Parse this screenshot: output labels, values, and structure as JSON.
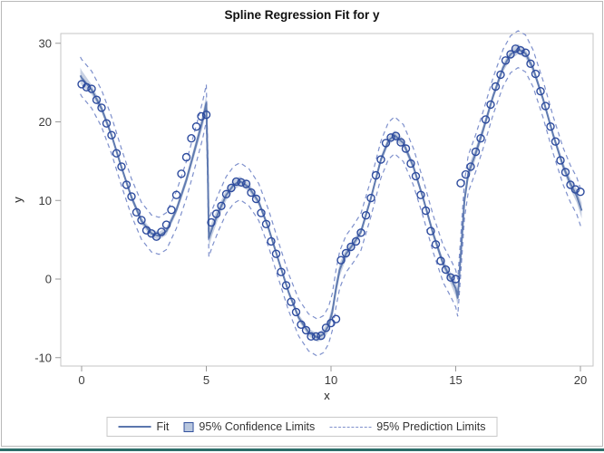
{
  "title": "Spline Regression Fit for y",
  "axes": {
    "x": {
      "label": "x",
      "ticks": [
        0,
        5,
        10,
        15,
        20
      ]
    },
    "y": {
      "label": "y",
      "ticks": [
        -10,
        0,
        10,
        20,
        30
      ]
    }
  },
  "legend": {
    "fit_label": "Fit",
    "ci_label": "95% Confidence Limits",
    "pi_label": "95% Prediction Limits"
  },
  "colors": {
    "marker": "#2d4b9e",
    "fit": "#5b76ad",
    "band": "#c2cce0",
    "prediction": "#7e90cc",
    "wall": "#c6c6c6",
    "tick": "#9a9a9a",
    "text": "#3c3c3c",
    "teal_rule": "#2d6e6a"
  },
  "chart_data": {
    "type": "scatter",
    "title": "Spline Regression Fit for y",
    "xlabel": "x",
    "ylabel": "y",
    "xlim": [
      -0.85,
      20.5
    ],
    "ylim": [
      -11.1,
      31.2
    ],
    "grid": false,
    "legend_position": "bottom",
    "jumps_at_x": [
      5,
      10.3,
      15
    ],
    "scatter_points": [
      [
        0,
        24.8
      ],
      [
        0.2,
        24.4
      ],
      [
        0.4,
        24.2
      ],
      [
        0.6,
        22.8
      ],
      [
        0.8,
        21.8
      ],
      [
        1,
        19.8
      ],
      [
        1.2,
        18.3
      ],
      [
        1.4,
        16.0
      ],
      [
        1.6,
        14.3
      ],
      [
        1.8,
        12.0
      ],
      [
        2,
        10.5
      ],
      [
        2.2,
        8.5
      ],
      [
        2.4,
        7.5
      ],
      [
        2.6,
        6.2
      ],
      [
        2.8,
        5.8
      ],
      [
        3,
        5.4
      ],
      [
        3.2,
        6.0
      ],
      [
        3.4,
        6.9
      ],
      [
        3.6,
        8.8
      ],
      [
        3.8,
        10.7
      ],
      [
        4,
        13.4
      ],
      [
        4.2,
        15.5
      ],
      [
        4.4,
        17.9
      ],
      [
        4.6,
        19.4
      ],
      [
        4.8,
        20.7
      ],
      [
        5,
        20.9
      ],
      [
        5.2,
        7.2
      ],
      [
        5.4,
        8.3
      ],
      [
        5.6,
        9.3
      ],
      [
        5.8,
        10.8
      ],
      [
        6,
        11.6
      ],
      [
        6.2,
        12.4
      ],
      [
        6.4,
        12.3
      ],
      [
        6.6,
        12.1
      ],
      [
        6.8,
        11.0
      ],
      [
        7,
        10.2
      ],
      [
        7.2,
        8.4
      ],
      [
        7.4,
        7.0
      ],
      [
        7.6,
        4.8
      ],
      [
        7.8,
        3.2
      ],
      [
        8,
        0.9
      ],
      [
        8.2,
        -0.8
      ],
      [
        8.4,
        -2.9
      ],
      [
        8.6,
        -4.2
      ],
      [
        8.8,
        -5.8
      ],
      [
        9,
        -6.5
      ],
      [
        9.2,
        -7.3
      ],
      [
        9.4,
        -7.3
      ],
      [
        9.6,
        -7.2
      ],
      [
        9.8,
        -6.2
      ],
      [
        10,
        -5.6
      ],
      [
        10.2,
        -5.1
      ],
      [
        10.4,
        2.4
      ],
      [
        10.6,
        3.3
      ],
      [
        10.8,
        4.1
      ],
      [
        11,
        4.8
      ],
      [
        11.2,
        5.9
      ],
      [
        11.4,
        8.1
      ],
      [
        11.6,
        10.3
      ],
      [
        11.8,
        13.2
      ],
      [
        12,
        15.2
      ],
      [
        12.2,
        17.3
      ],
      [
        12.4,
        18.0
      ],
      [
        12.6,
        18.2
      ],
      [
        12.8,
        17.4
      ],
      [
        13,
        16.6
      ],
      [
        13.2,
        14.7
      ],
      [
        13.4,
        13.1
      ],
      [
        13.6,
        10.7
      ],
      [
        13.8,
        8.7
      ],
      [
        14,
        6.1
      ],
      [
        14.2,
        4.4
      ],
      [
        14.4,
        2.3
      ],
      [
        14.6,
        1.2
      ],
      [
        14.8,
        0.2
      ],
      [
        15,
        0.0
      ],
      [
        15.2,
        12.2
      ],
      [
        15.4,
        13.3
      ],
      [
        15.6,
        14.3
      ],
      [
        15.8,
        16.2
      ],
      [
        16,
        17.9
      ],
      [
        16.2,
        20.3
      ],
      [
        16.4,
        22.2
      ],
      [
        16.6,
        24.5
      ],
      [
        16.8,
        26.0
      ],
      [
        17,
        27.8
      ],
      [
        17.2,
        28.6
      ],
      [
        17.4,
        29.3
      ],
      [
        17.6,
        29.1
      ],
      [
        17.8,
        28.8
      ],
      [
        18,
        27.4
      ],
      [
        18.2,
        26.1
      ],
      [
        18.4,
        23.9
      ],
      [
        18.6,
        22.0
      ],
      [
        18.8,
        19.4
      ],
      [
        19,
        17.5
      ],
      [
        19.2,
        15.1
      ],
      [
        19.4,
        13.6
      ],
      [
        19.6,
        12.0
      ],
      [
        19.8,
        11.4
      ],
      [
        20,
        11.1
      ]
    ],
    "fit_line": [
      [
        -0.05,
        25.9
      ],
      [
        0,
        25.6
      ],
      [
        0.4,
        24.1
      ],
      [
        0.8,
        21.7
      ],
      [
        1.2,
        18.3
      ],
      [
        1.6,
        14.2
      ],
      [
        2,
        10.4
      ],
      [
        2.4,
        7.4
      ],
      [
        2.8,
        5.8
      ],
      [
        3.1,
        5.5
      ],
      [
        3.4,
        6.1
      ],
      [
        3.8,
        8.8
      ],
      [
        4.2,
        12.6
      ],
      [
        4.6,
        17.2
      ],
      [
        4.85,
        20.2
      ],
      [
        5,
        22.4
      ],
      [
        5.06,
        14.0
      ],
      [
        5.1,
        5.2
      ],
      [
        5.25,
        6.6
      ],
      [
        5.5,
        8.6
      ],
      [
        5.8,
        10.7
      ],
      [
        6.1,
        12.0
      ],
      [
        6.35,
        12.45
      ],
      [
        6.7,
        11.7
      ],
      [
        7.1,
        9.8
      ],
      [
        7.5,
        6.4
      ],
      [
        7.9,
        2.3
      ],
      [
        8.3,
        -1.7
      ],
      [
        8.7,
        -4.9
      ],
      [
        9.1,
        -6.8
      ],
      [
        9.45,
        -7.45
      ],
      [
        9.7,
        -7.0
      ],
      [
        9.9,
        -5.9
      ],
      [
        10.05,
        -4.2
      ],
      [
        10.2,
        -1.2
      ],
      [
        10.35,
        1.2
      ],
      [
        10.6,
        3.2
      ],
      [
        10.9,
        4.5
      ],
      [
        11.2,
        6.0
      ],
      [
        11.6,
        10.3
      ],
      [
        12,
        15.2
      ],
      [
        12.3,
        17.6
      ],
      [
        12.55,
        18.3
      ],
      [
        12.9,
        17.3
      ],
      [
        13.3,
        14.3
      ],
      [
        13.7,
        10.2
      ],
      [
        14.1,
        5.7
      ],
      [
        14.5,
        1.9
      ],
      [
        14.8,
        0.1
      ],
      [
        15.0,
        -1.2
      ],
      [
        15.08,
        -2.4
      ],
      [
        15.2,
        3.0
      ],
      [
        15.35,
        10.0
      ],
      [
        15.5,
        13.4
      ],
      [
        15.8,
        16.0
      ],
      [
        16.1,
        19.0
      ],
      [
        16.5,
        23.3
      ],
      [
        16.9,
        26.9
      ],
      [
        17.2,
        28.6
      ],
      [
        17.5,
        29.25
      ],
      [
        17.8,
        28.7
      ],
      [
        18.1,
        26.8
      ],
      [
        18.5,
        22.9
      ],
      [
        18.9,
        18.4
      ],
      [
        19.3,
        14.4
      ],
      [
        19.6,
        12.1
      ],
      [
        19.85,
        10.6
      ],
      [
        20.05,
        8.7
      ]
    ],
    "confidence_half_width": [
      [
        -0.05,
        1.0
      ],
      [
        0.5,
        0.55
      ],
      [
        1.5,
        0.35
      ],
      [
        2.8,
        0.5
      ],
      [
        4,
        0.5
      ],
      [
        4.7,
        0.75
      ],
      [
        5.05,
        1.1
      ],
      [
        5.5,
        0.75
      ],
      [
        6.35,
        0.6
      ],
      [
        7.2,
        0.4
      ],
      [
        8.2,
        0.35
      ],
      [
        9.45,
        0.55
      ],
      [
        10.2,
        0.9
      ],
      [
        10.9,
        0.55
      ],
      [
        11.8,
        0.4
      ],
      [
        12.55,
        0.6
      ],
      [
        13.6,
        0.4
      ],
      [
        14.6,
        0.55
      ],
      [
        15.1,
        1.1
      ],
      [
        15.6,
        0.8
      ],
      [
        16.4,
        0.45
      ],
      [
        17.5,
        0.65
      ],
      [
        18.5,
        0.4
      ],
      [
        19.3,
        0.5
      ],
      [
        20.05,
        1.0
      ]
    ],
    "prediction_offset": 2.35
  }
}
